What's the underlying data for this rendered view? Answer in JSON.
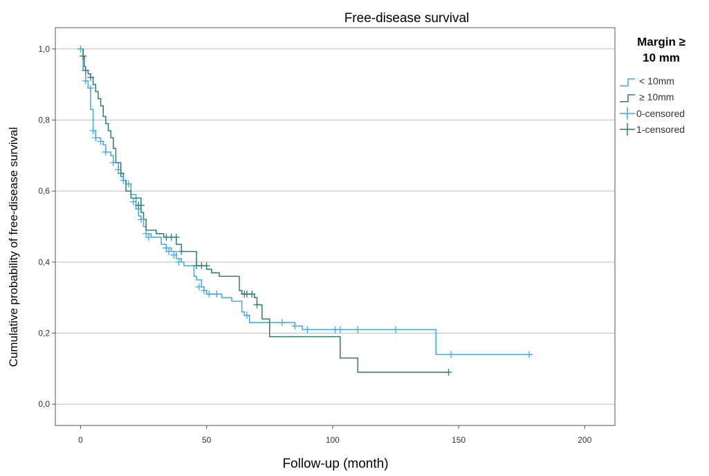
{
  "chart_data": {
    "type": "line",
    "title": "Free-disease survival",
    "xlabel": "Follow-up (month)",
    "ylabel": "Cumulative probability of free-disease survival",
    "xlim": [
      -10,
      212
    ],
    "ylim": [
      -0.06,
      1.06
    ],
    "xticks": [
      0,
      50,
      100,
      150,
      200
    ],
    "xtick_labels": [
      "0",
      "50",
      "100",
      "150",
      "200"
    ],
    "yticks": [
      0.0,
      0.2,
      0.4,
      0.6,
      0.8,
      1.0
    ],
    "ytick_labels": [
      "0,0",
      "0,2",
      "0,4",
      "0,6",
      "0,8",
      "1,0"
    ],
    "grid": "horizontal",
    "legend": {
      "title_line1": "Margin ≥",
      "title_line2": "10 mm",
      "placement": "right",
      "entries": [
        "< 10mm",
        "≥ 10mm",
        "0-censored",
        "1-censored"
      ]
    },
    "colors": {
      "lt10": "#3fa8e8",
      "ge10": "#2e7a6f"
    },
    "series": [
      {
        "name": "< 10mm",
        "steps": [
          [
            0,
            1.0
          ],
          [
            1,
            0.94
          ],
          [
            2,
            0.91
          ],
          [
            3,
            0.89
          ],
          [
            4,
            0.83
          ],
          [
            5,
            0.77
          ],
          [
            6,
            0.75
          ],
          [
            8,
            0.74
          ],
          [
            9,
            0.73
          ],
          [
            10,
            0.71
          ],
          [
            12,
            0.7
          ],
          [
            13,
            0.68
          ],
          [
            15,
            0.66
          ],
          [
            16,
            0.64
          ],
          [
            17,
            0.63
          ],
          [
            18,
            0.62
          ],
          [
            20,
            0.59
          ],
          [
            22,
            0.55
          ],
          [
            23,
            0.53
          ],
          [
            24,
            0.52
          ],
          [
            25,
            0.5
          ],
          [
            26,
            0.48
          ],
          [
            28,
            0.47
          ],
          [
            32,
            0.45
          ],
          [
            34,
            0.44
          ],
          [
            36,
            0.43
          ],
          [
            38,
            0.41
          ],
          [
            40,
            0.4
          ],
          [
            41,
            0.39
          ],
          [
            45,
            0.36
          ],
          [
            46,
            0.35
          ],
          [
            48,
            0.33
          ],
          [
            49,
            0.32
          ],
          [
            50,
            0.31
          ],
          [
            53,
            0.31
          ],
          [
            56,
            0.3
          ],
          [
            60,
            0.29
          ],
          [
            64,
            0.26
          ],
          [
            65,
            0.25
          ],
          [
            67,
            0.23
          ],
          [
            75,
            0.23
          ],
          [
            85,
            0.22
          ],
          [
            86,
            0.22
          ],
          [
            88,
            0.21
          ],
          [
            140,
            0.21
          ],
          [
            141,
            0.14
          ],
          [
            178,
            0.14
          ]
        ],
        "censored": [
          [
            0,
            1.0
          ],
          [
            2,
            0.91
          ],
          [
            4,
            0.89
          ],
          [
            5,
            0.77
          ],
          [
            6,
            0.75
          ],
          [
            8,
            0.74
          ],
          [
            10,
            0.71
          ],
          [
            13,
            0.68
          ],
          [
            15,
            0.66
          ],
          [
            17,
            0.63
          ],
          [
            19,
            0.62
          ],
          [
            21,
            0.57
          ],
          [
            23,
            0.55
          ],
          [
            24,
            0.52
          ],
          [
            26,
            0.48
          ],
          [
            27,
            0.47
          ],
          [
            34,
            0.44
          ],
          [
            35,
            0.43
          ],
          [
            37,
            0.42
          ],
          [
            39,
            0.4
          ],
          [
            47,
            0.33
          ],
          [
            49,
            0.32
          ],
          [
            51,
            0.31
          ],
          [
            54,
            0.31
          ],
          [
            66,
            0.25
          ],
          [
            80,
            0.23
          ],
          [
            85,
            0.22
          ],
          [
            90,
            0.21
          ],
          [
            101,
            0.21
          ],
          [
            103,
            0.21
          ],
          [
            110,
            0.21
          ],
          [
            125,
            0.21
          ],
          [
            147,
            0.14
          ],
          [
            178,
            0.14
          ]
        ]
      },
      {
        "name": "≥ 10mm",
        "steps": [
          [
            0,
            1.0
          ],
          [
            1,
            0.98
          ],
          [
            1.5,
            0.95
          ],
          [
            2,
            0.94
          ],
          [
            3,
            0.93
          ],
          [
            4,
            0.92
          ],
          [
            5,
            0.9
          ],
          [
            6,
            0.88
          ],
          [
            7,
            0.86
          ],
          [
            8,
            0.84
          ],
          [
            9,
            0.81
          ],
          [
            10,
            0.79
          ],
          [
            11,
            0.77
          ],
          [
            12,
            0.75
          ],
          [
            13,
            0.72
          ],
          [
            14,
            0.68
          ],
          [
            16,
            0.65
          ],
          [
            17,
            0.63
          ],
          [
            18,
            0.6
          ],
          [
            20,
            0.58
          ],
          [
            24,
            0.54
          ],
          [
            25,
            0.52
          ],
          [
            26,
            0.49
          ],
          [
            30,
            0.48
          ],
          [
            33,
            0.47
          ],
          [
            38,
            0.45
          ],
          [
            40,
            0.43
          ],
          [
            46,
            0.39
          ],
          [
            50,
            0.38
          ],
          [
            52,
            0.37
          ],
          [
            55,
            0.36
          ],
          [
            63,
            0.32
          ],
          [
            64,
            0.31
          ],
          [
            69,
            0.3
          ],
          [
            70,
            0.28
          ],
          [
            72,
            0.24
          ],
          [
            75,
            0.19
          ],
          [
            102,
            0.19
          ],
          [
            103,
            0.13
          ],
          [
            109,
            0.13
          ],
          [
            110,
            0.09
          ],
          [
            146,
            0.09
          ]
        ],
        "censored": [
          [
            1,
            0.98
          ],
          [
            2,
            0.94
          ],
          [
            4,
            0.92
          ],
          [
            16,
            0.65
          ],
          [
            23,
            0.56
          ],
          [
            24,
            0.56
          ],
          [
            34,
            0.47
          ],
          [
            36,
            0.47
          ],
          [
            38,
            0.47
          ],
          [
            40,
            0.43
          ],
          [
            46,
            0.39
          ],
          [
            48,
            0.39
          ],
          [
            50,
            0.39
          ],
          [
            65,
            0.31
          ],
          [
            66,
            0.31
          ],
          [
            68,
            0.31
          ],
          [
            70,
            0.28
          ],
          [
            146,
            0.09
          ]
        ]
      }
    ]
  }
}
